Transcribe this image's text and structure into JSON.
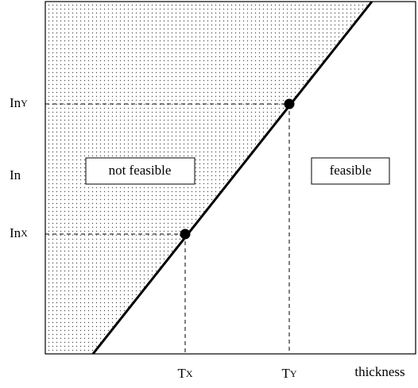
{
  "axes": {
    "y_label": "In",
    "x_label": "thickness",
    "y_marks": [
      {
        "base": "In",
        "sub": "Y"
      },
      {
        "base": "In",
        "sub": "X"
      }
    ],
    "x_marks": [
      {
        "base": "T",
        "sub": "X"
      },
      {
        "base": "T",
        "sub": "Y"
      }
    ]
  },
  "regions": {
    "left": "not feasible",
    "right": "feasible"
  }
}
